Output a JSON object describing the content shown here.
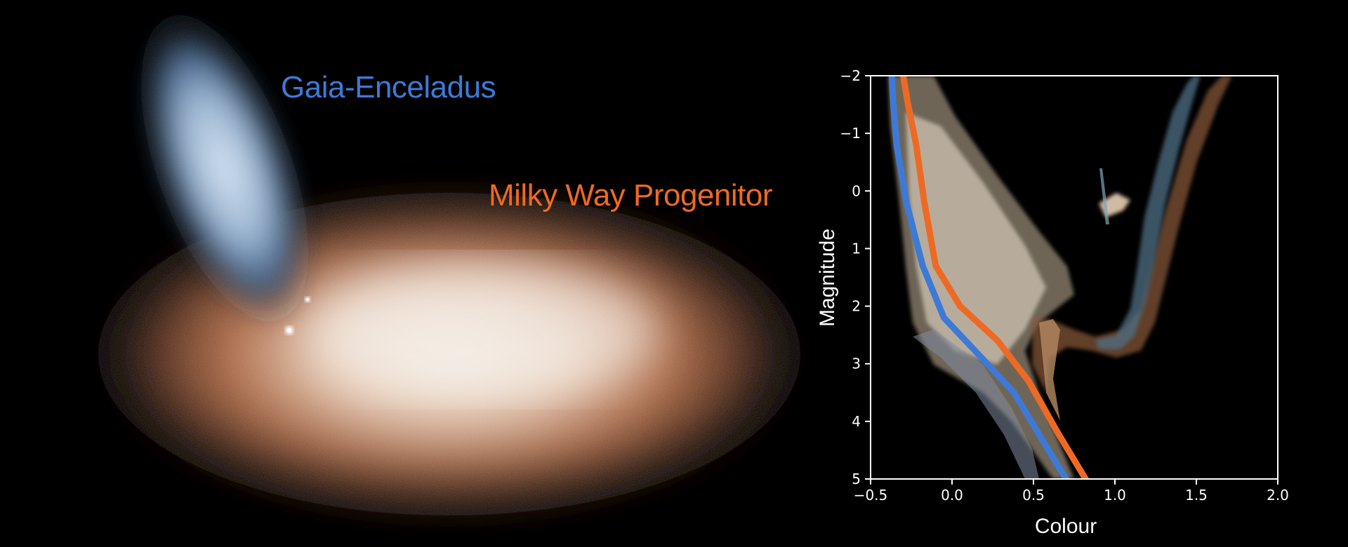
{
  "labels": {
    "gaia_enceladus": "Gaia-Enceladus",
    "milky_way_progenitor": "Milky Way Progenitor"
  },
  "colors": {
    "background": "#000000",
    "gaia_enceladus": "#3d7ad8",
    "milky_way_progenitor": "#ee6a24",
    "axes": "#ffffff"
  },
  "chart_data": {
    "type": "line",
    "xlabel": "Colour",
    "ylabel": "Magnitude",
    "xlim": [
      -0.5,
      2.0
    ],
    "ylim": [
      5,
      -2
    ],
    "x_ticks": [
      "−0.5",
      "0.0",
      "0.5",
      "1.0",
      "1.5",
      "2.0"
    ],
    "x_tick_values": [
      -0.5,
      0.0,
      0.5,
      1.0,
      1.5,
      2.0
    ],
    "y_ticks": [
      "−2",
      "−1",
      "0",
      "1",
      "2",
      "3",
      "4",
      "5"
    ],
    "y_tick_values": [
      -2,
      -1,
      0,
      1,
      2,
      3,
      4,
      5
    ],
    "grid": false,
    "background": "colour-magnitude density distribution of stars (blue and orange/tan populations)",
    "series": [
      {
        "color": "#3d7ad8",
        "x": [
          -0.37,
          -0.36,
          -0.34,
          -0.28,
          -0.18,
          -0.05,
          0.15,
          0.38,
          0.55,
          0.7
        ],
        "y": [
          -2.0,
          -1.5,
          -0.8,
          0.2,
          1.3,
          2.2,
          2.8,
          3.5,
          4.3,
          5.0
        ]
      },
      {
        "color": "#ee6a24",
        "x": [
          -0.3,
          -0.27,
          -0.22,
          -0.17,
          -0.1,
          0.05,
          0.28,
          0.47,
          0.65,
          0.82
        ],
        "y": [
          -2.0,
          -1.5,
          -0.8,
          0.2,
          1.3,
          2.0,
          2.6,
          3.3,
          4.2,
          5.0
        ]
      }
    ]
  }
}
